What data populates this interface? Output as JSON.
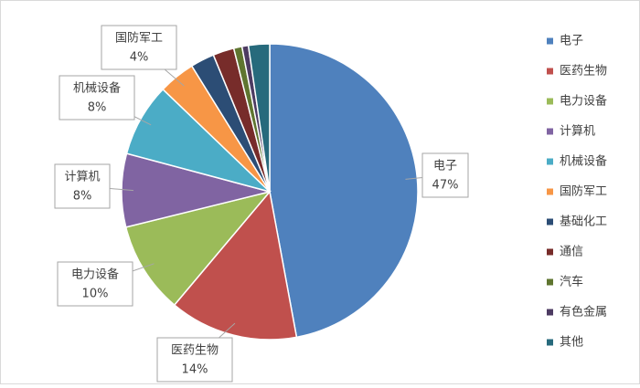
{
  "chart_data": {
    "type": "pie",
    "categories": [
      "电子",
      "医药生物",
      "电力设备",
      "计算机",
      "机械设备",
      "国防军工",
      "基础化工",
      "通信",
      "汽车",
      "有色金属",
      "其他"
    ],
    "values": [
      47,
      14,
      10,
      8,
      8,
      4,
      2.6,
      2.3,
      0.9,
      0.7,
      2.3
    ],
    "value_labels": [
      "47%",
      "14%",
      "10%",
      "8%",
      "8%",
      "4%",
      null,
      null,
      null,
      null,
      null
    ],
    "colors": [
      "#4f81bd",
      "#c0504d",
      "#9bbb59",
      "#8064a2",
      "#4bacc6",
      "#f79646",
      "#2c4d75",
      "#772c2a",
      "#5f7530",
      "#4d3b62",
      "#276a7c"
    ],
    "legend": "right"
  }
}
